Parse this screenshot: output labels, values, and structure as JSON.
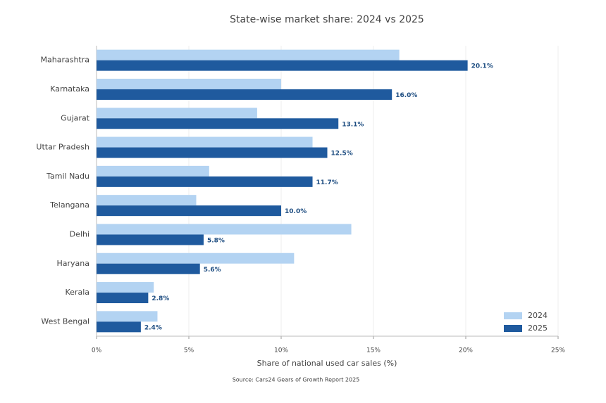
{
  "chart_data": {
    "type": "hbar",
    "title": "State-wise market share: 2024 vs 2025",
    "x_label": "Share of national used car sales (%)",
    "source": "Source: Cars24 Gears of Growth Report 2025",
    "categories": [
      "Maharashtra",
      "Karnataka",
      "Gujarat",
      "Uttar Pradesh",
      "Tamil Nadu",
      "Telangana",
      "Delhi",
      "Haryana",
      "Kerala",
      "West Bengal"
    ],
    "series": [
      {
        "name": "2024",
        "color": "#b3d3f2",
        "values": [
          16.4,
          10.0,
          8.7,
          11.7,
          6.1,
          5.4,
          13.8,
          10.7,
          3.1,
          3.3
        ]
      },
      {
        "name": "2025",
        "color": "#1f5a9e",
        "values": [
          20.1,
          16.0,
          13.1,
          12.5,
          11.7,
          10.0,
          5.8,
          5.6,
          2.8,
          2.4
        ],
        "value_labels": [
          "20.1%",
          "16.0%",
          "13.1%",
          "12.5%",
          "11.7%",
          "10.0%",
          "5.8%",
          "5.6%",
          "2.8%",
          "2.4%"
        ]
      }
    ],
    "xlim": [
      0,
      25
    ],
    "xticks": [
      {
        "value": 0,
        "label": "0%"
      },
      {
        "value": 5,
        "label": "5%"
      },
      {
        "value": 10,
        "label": "10%"
      },
      {
        "value": 15,
        "label": "15%"
      },
      {
        "value": 20,
        "label": "20%"
      },
      {
        "value": 25,
        "label": "25%"
      }
    ],
    "grid": true,
    "legend": "lower right"
  }
}
